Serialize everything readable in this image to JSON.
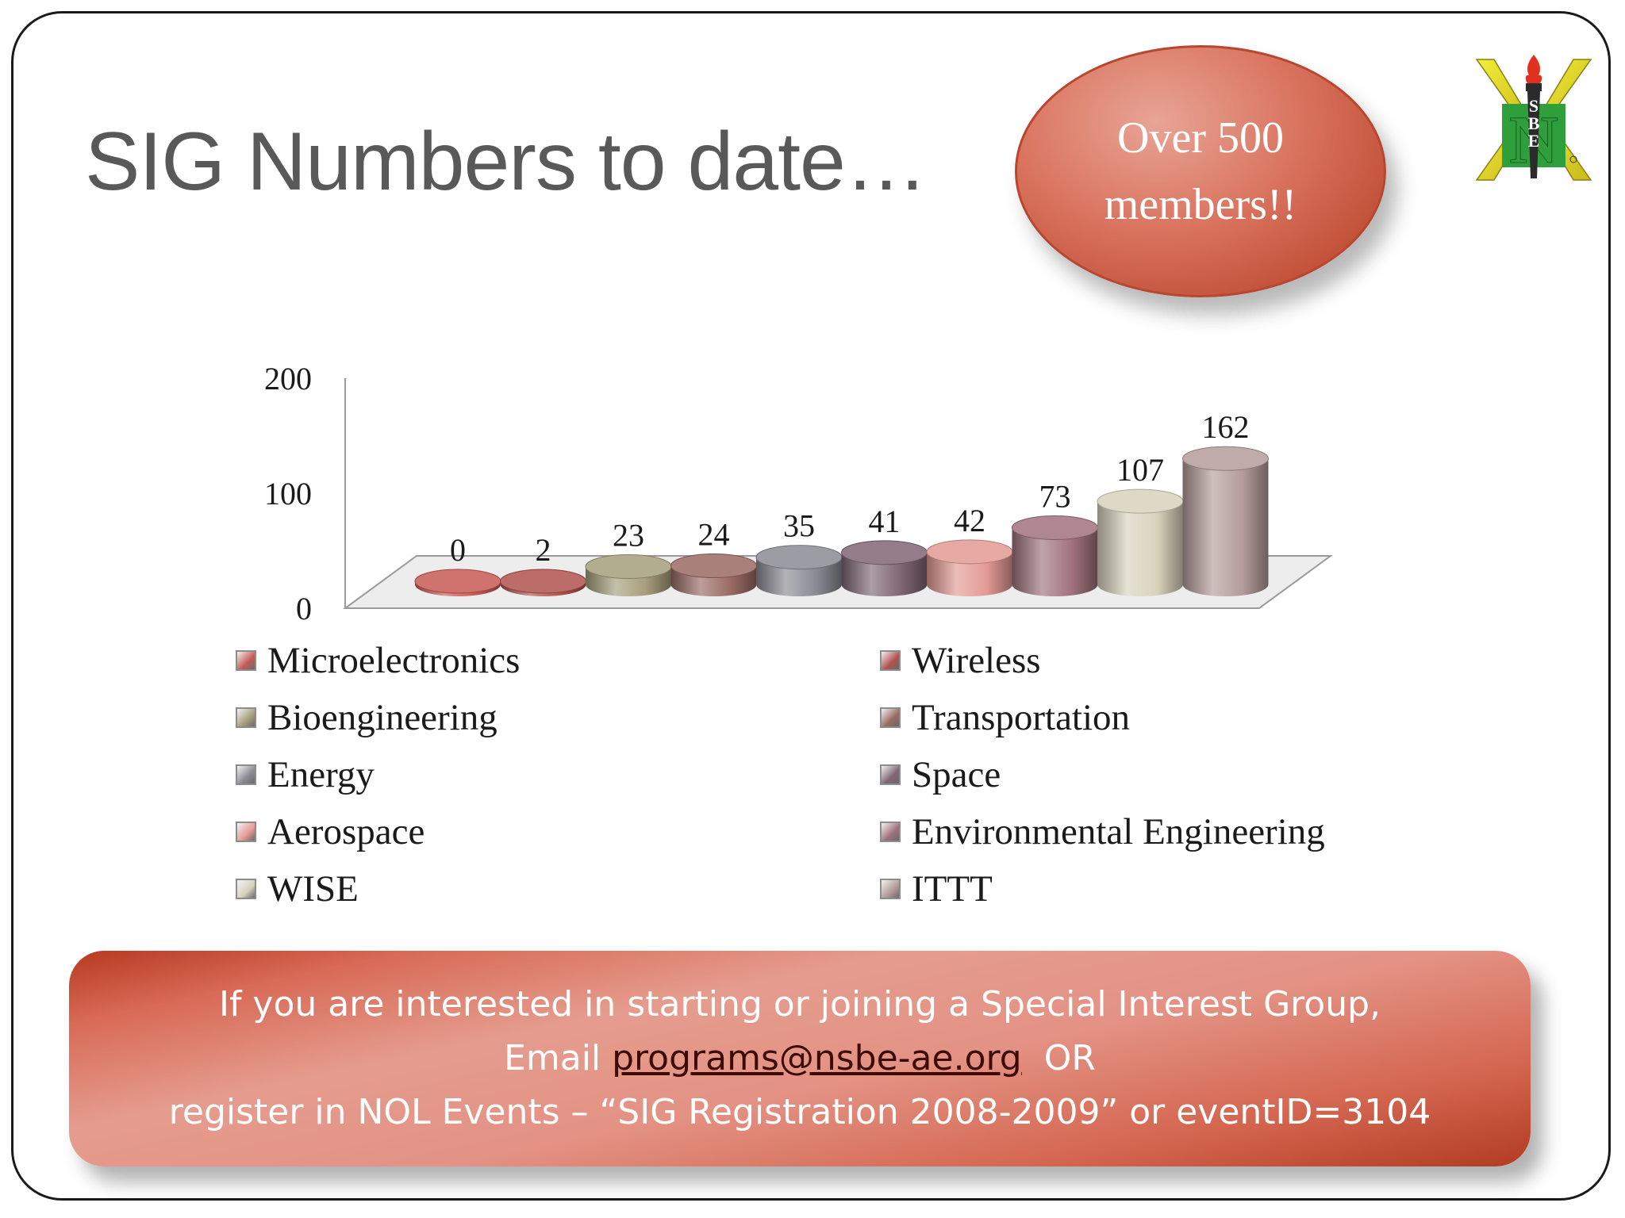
{
  "slide": {
    "title": "SIG Numbers to date…",
    "callout": {
      "line1": "Over 500",
      "line2": "members!!"
    },
    "logo": {
      "icon": "nsbe-torch-logo-icon",
      "letters": [
        "S",
        "B",
        "E"
      ],
      "big_letter": "N"
    }
  },
  "chart_data": {
    "type": "bar",
    "style": "3d-cylinder",
    "categories": [
      "Microelectronics",
      "Wireless",
      "Bioengineering",
      "Transportation",
      "Energy",
      "Space",
      "Aerospace",
      "Environmental Engineering",
      "WISE",
      "ITTT"
    ],
    "values": [
      0,
      2,
      23,
      24,
      35,
      41,
      42,
      73,
      107,
      162
    ],
    "colors": [
      "#c85a55",
      "#b0524e",
      "#a69e7c",
      "#9a6a63",
      "#8a8a94",
      "#7f6673",
      "#e39a94",
      "#a0727c",
      "#d8d2bd",
      "#b49c9a"
    ],
    "y_ticks": [
      "0",
      "100",
      "200"
    ],
    "ylim": [
      0,
      200
    ],
    "title": "",
    "xlabel": "",
    "ylabel": "",
    "grid": false,
    "legend_placement": "bottom",
    "data_labels": true
  },
  "banner": {
    "line1": "If you are interested in starting or joining a Special Interest Group,",
    "line2_prefix": "Email ",
    "line2_email": "programs@nsbe-ae.org",
    "line2_suffix": "  OR",
    "line3": "register in NOL Events – “SIG Registration 2008-2009” or eventID=3104"
  }
}
